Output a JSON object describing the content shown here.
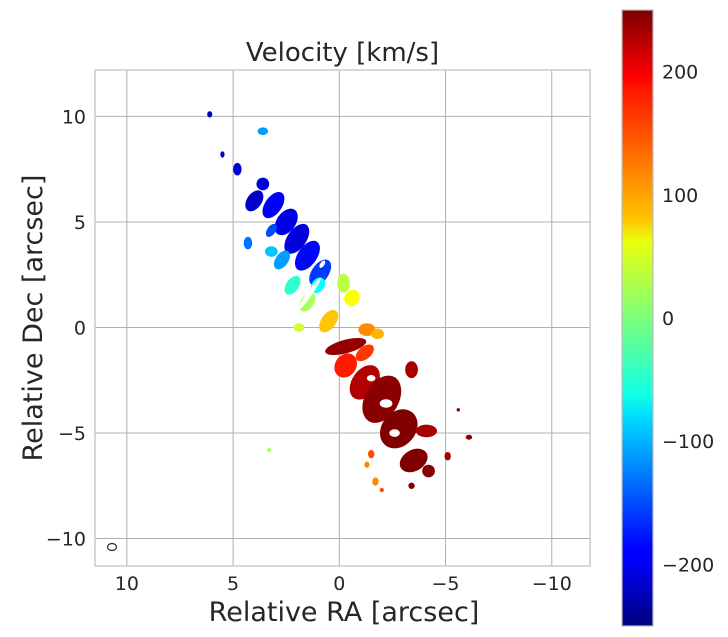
{
  "chart_data": {
    "type": "heatmap",
    "title": "Velocity [km/s]",
    "xlabel": "Relative RA [arcsec]",
    "ylabel": "Relative Dec [arcsec]",
    "xlim": [
      11.5,
      -11.8
    ],
    "ylim": [
      -11.3,
      12.2
    ],
    "xticks": [
      10,
      5,
      0,
      -5,
      -10
    ],
    "yticks": [
      10,
      5,
      0,
      -5,
      -10
    ],
    "xtick_labels": [
      "10",
      "5",
      "0",
      "−5",
      "−10"
    ],
    "ytick_labels": [
      "10",
      "5",
      "0",
      "−5",
      "−10"
    ],
    "grid": true,
    "colormap": "jet",
    "colorbar": {
      "vmin": -250,
      "vmax": 250,
      "ticks": [
        200,
        100,
        0,
        -100,
        -200
      ],
      "tick_labels": [
        "200",
        "100",
        "0",
        "−100",
        "−200"
      ]
    },
    "beam_ellipse": {
      "ra": 10.7,
      "dec": -10.4,
      "major": 0.28,
      "minor": 0.22
    },
    "velocity_blobs": [
      {
        "ra": 6.1,
        "dec": 10.1,
        "rx": 0.12,
        "ry": 0.15,
        "angle": 0,
        "v": -215
      },
      {
        "ra": 3.6,
        "dec": 9.3,
        "rx": 0.25,
        "ry": 0.18,
        "angle": 0,
        "v": -110
      },
      {
        "ra": 5.5,
        "dec": 8.2,
        "rx": 0.1,
        "ry": 0.15,
        "angle": 0,
        "v": -210
      },
      {
        "ra": 4.8,
        "dec": 7.5,
        "rx": 0.2,
        "ry": 0.3,
        "angle": 0,
        "v": -205
      },
      {
        "ra": 3.6,
        "dec": 6.8,
        "rx": 0.3,
        "ry": 0.3,
        "angle": 0,
        "v": -205
      },
      {
        "ra": 4.0,
        "dec": 6.0,
        "rx": 0.55,
        "ry": 0.35,
        "angle": -55,
        "v": -215
      },
      {
        "ra": 3.1,
        "dec": 5.8,
        "rx": 0.7,
        "ry": 0.4,
        "angle": -55,
        "v": -190
      },
      {
        "ra": 2.5,
        "dec": 5.0,
        "rx": 0.7,
        "ry": 0.45,
        "angle": -55,
        "v": -200
      },
      {
        "ra": 3.2,
        "dec": 4.6,
        "rx": 0.35,
        "ry": 0.2,
        "angle": -55,
        "v": -150
      },
      {
        "ra": 4.3,
        "dec": 4.0,
        "rx": 0.2,
        "ry": 0.3,
        "angle": 0,
        "v": -130
      },
      {
        "ra": 2.0,
        "dec": 4.2,
        "rx": 0.8,
        "ry": 0.45,
        "angle": -55,
        "v": -205
      },
      {
        "ra": 1.5,
        "dec": 3.4,
        "rx": 0.8,
        "ry": 0.45,
        "angle": -55,
        "v": -185
      },
      {
        "ra": 2.7,
        "dec": 3.2,
        "rx": 0.5,
        "ry": 0.3,
        "angle": -55,
        "v": -110
      },
      {
        "ra": 3.2,
        "dec": 3.6,
        "rx": 0.3,
        "ry": 0.25,
        "angle": 0,
        "v": -90
      },
      {
        "ra": 0.9,
        "dec": 2.6,
        "rx": 0.7,
        "ry": 0.4,
        "angle": -55,
        "v": -160
      },
      {
        "ra": 2.2,
        "dec": 2.0,
        "rx": 0.5,
        "ry": 0.3,
        "angle": -55,
        "v": -40
      },
      {
        "ra": 1.0,
        "dec": 2.0,
        "rx": 0.4,
        "ry": 0.3,
        "angle": -55,
        "v": -60
      },
      {
        "ra": 1.5,
        "dec": 1.2,
        "rx": 0.5,
        "ry": 0.3,
        "angle": -55,
        "v": 20
      },
      {
        "ra": -0.2,
        "dec": 2.1,
        "rx": 0.3,
        "ry": 0.45,
        "angle": 0,
        "v": 30
      },
      {
        "ra": -0.6,
        "dec": 1.4,
        "rx": 0.4,
        "ry": 0.35,
        "angle": -55,
        "v": 60
      },
      {
        "ra": 0.5,
        "dec": 0.3,
        "rx": 0.6,
        "ry": 0.35,
        "angle": -55,
        "v": 90
      },
      {
        "ra": 1.9,
        "dec": 0.0,
        "rx": 0.25,
        "ry": 0.2,
        "angle": 0,
        "v": 40
      },
      {
        "ra": -1.3,
        "dec": -0.1,
        "rx": 0.4,
        "ry": 0.3,
        "angle": 0,
        "v": 120
      },
      {
        "ra": -1.8,
        "dec": -0.3,
        "rx": 0.3,
        "ry": 0.25,
        "angle": 0,
        "v": 100
      },
      {
        "ra": -0.3,
        "dec": -0.9,
        "rx": 1.0,
        "ry": 0.32,
        "angle": -15,
        "v": 240
      },
      {
        "ra": -1.2,
        "dec": -1.2,
        "rx": 0.5,
        "ry": 0.3,
        "angle": -40,
        "v": 160
      },
      {
        "ra": -0.3,
        "dec": -1.8,
        "rx": 0.6,
        "ry": 0.5,
        "angle": -55,
        "v": 175
      },
      {
        "ra": -1.2,
        "dec": -2.6,
        "rx": 0.9,
        "ry": 0.6,
        "angle": -55,
        "v": 225
      },
      {
        "ra": -2.0,
        "dec": -3.4,
        "rx": 1.2,
        "ry": 0.8,
        "angle": -60,
        "v": 245
      },
      {
        "ra": -3.4,
        "dec": -2.0,
        "rx": 0.3,
        "ry": 0.4,
        "angle": 0,
        "v": 230
      },
      {
        "ra": -2.8,
        "dec": -4.8,
        "rx": 1.0,
        "ry": 0.8,
        "angle": -50,
        "v": 250
      },
      {
        "ra": -4.1,
        "dec": -4.9,
        "rx": 0.5,
        "ry": 0.3,
        "angle": 0,
        "v": 230
      },
      {
        "ra": -3.5,
        "dec": -6.3,
        "rx": 0.7,
        "ry": 0.5,
        "angle": -30,
        "v": 250
      },
      {
        "ra": -4.2,
        "dec": -6.8,
        "rx": 0.3,
        "ry": 0.3,
        "angle": 0,
        "v": 245
      },
      {
        "ra": -5.1,
        "dec": -6.1,
        "rx": 0.15,
        "ry": 0.2,
        "angle": 0,
        "v": 230
      },
      {
        "ra": -1.5,
        "dec": -6.0,
        "rx": 0.15,
        "ry": 0.2,
        "angle": 0,
        "v": 150
      },
      {
        "ra": -1.3,
        "dec": -6.5,
        "rx": 0.12,
        "ry": 0.15,
        "angle": 0,
        "v": 120
      },
      {
        "ra": -1.7,
        "dec": -7.3,
        "rx": 0.15,
        "ry": 0.2,
        "angle": 0,
        "v": 120
      },
      {
        "ra": -3.4,
        "dec": -7.5,
        "rx": 0.15,
        "ry": 0.15,
        "angle": 0,
        "v": 250
      },
      {
        "ra": -6.1,
        "dec": -5.2,
        "rx": 0.15,
        "ry": 0.12,
        "angle": 0,
        "v": 245
      },
      {
        "ra": 3.3,
        "dec": -5.8,
        "rx": 0.1,
        "ry": 0.1,
        "angle": 0,
        "v": 20
      },
      {
        "ra": -2.0,
        "dec": -7.7,
        "rx": 0.1,
        "ry": 0.1,
        "angle": 0,
        "v": 150
      },
      {
        "ra": -5.6,
        "dec": -3.9,
        "rx": 0.08,
        "ry": 0.08,
        "angle": 0,
        "v": 245
      }
    ],
    "holes": [
      {
        "ra": 4.0,
        "dec": 4.6,
        "rx": 0.35,
        "ry": 0.15,
        "angle": -55
      },
      {
        "ra": 1.4,
        "dec": 1.6,
        "rx": 0.9,
        "ry": 0.12,
        "angle": -55
      },
      {
        "ra": 0.8,
        "dec": 3.0,
        "rx": 0.2,
        "ry": 0.1,
        "angle": -55
      },
      {
        "ra": -2.2,
        "dec": -3.6,
        "rx": 0.3,
        "ry": 0.2,
        "angle": 0
      },
      {
        "ra": -2.6,
        "dec": -5.0,
        "rx": 0.25,
        "ry": 0.18,
        "angle": 0
      },
      {
        "ra": -1.5,
        "dec": -2.4,
        "rx": 0.2,
        "ry": 0.15,
        "angle": 0
      },
      {
        "ra": -3.2,
        "dec": -5.7,
        "rx": 0.2,
        "ry": 0.12,
        "angle": 0
      }
    ]
  }
}
